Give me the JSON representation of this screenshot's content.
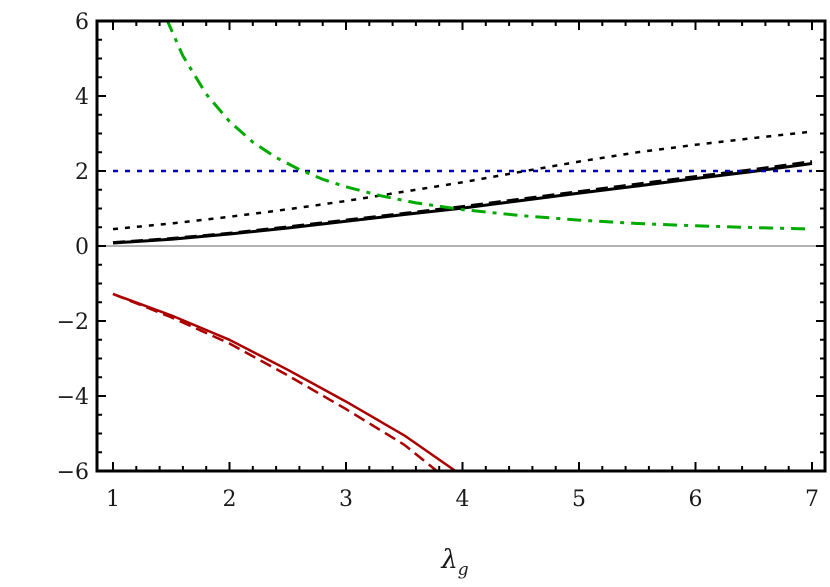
{
  "chart_data": {
    "type": "line",
    "title": "",
    "xlabel": "λ_g",
    "xlabel_main": "λ",
    "xlabel_sub": "g",
    "ylabel": "",
    "xlim": [
      1,
      7
    ],
    "ylim": [
      -6,
      6
    ],
    "grid": false,
    "legend": null,
    "x_ticks": [
      1,
      2,
      3,
      4,
      5,
      6,
      7
    ],
    "x_tick_labels": [
      "1",
      "2",
      "3",
      "4",
      "5",
      "6",
      "7"
    ],
    "y_ticks": [
      -6,
      -4,
      -2,
      0,
      2,
      4,
      6
    ],
    "y_tick_labels": [
      "−6",
      "−4",
      "−2",
      "0",
      "2",
      "4",
      "6"
    ],
    "reference_lines": [
      {
        "name": "zero-line",
        "y": 0,
        "color": "#999999",
        "style": "solid"
      }
    ],
    "series": [
      {
        "name": "black-solid",
        "color": "#000000",
        "style": "solid",
        "width": 3,
        "x": [
          1,
          1.5,
          2,
          2.5,
          3,
          3.5,
          4,
          4.5,
          5,
          5.5,
          6,
          6.5,
          7
        ],
        "values": [
          0.08,
          0.18,
          0.32,
          0.48,
          0.66,
          0.84,
          1.01,
          1.21,
          1.41,
          1.6,
          1.8,
          1.99,
          2.2
        ]
      },
      {
        "name": "black-dashed",
        "color": "#000000",
        "style": "dashed",
        "width": 3,
        "x": [
          1,
          1.5,
          2,
          2.5,
          3,
          3.5,
          4,
          4.5,
          5,
          5.5,
          6,
          6.5,
          7
        ],
        "values": [
          0.09,
          0.2,
          0.34,
          0.51,
          0.69,
          0.87,
          1.05,
          1.25,
          1.45,
          1.65,
          1.85,
          2.04,
          2.25
        ]
      },
      {
        "name": "black-dotted",
        "color": "#000000",
        "style": "dotted",
        "width": 2.5,
        "x": [
          1,
          1.5,
          2,
          2.5,
          3,
          3.5,
          4,
          4.5,
          5,
          5.5,
          6,
          6.5,
          7
        ],
        "values": [
          0.45,
          0.6,
          0.78,
          0.98,
          1.2,
          1.45,
          1.7,
          1.98,
          2.25,
          2.5,
          2.7,
          2.88,
          3.05
        ]
      },
      {
        "name": "blue-dotted",
        "color": "#0000aa",
        "style": "dotted",
        "width": 2.5,
        "x": [
          1,
          7
        ],
        "values": [
          2,
          2
        ]
      },
      {
        "name": "green-dash-dot",
        "color": "#00aa00",
        "style": "dashdot",
        "width": 3,
        "x": [
          1.46,
          1.6,
          1.8,
          2,
          2.2,
          2.4,
          2.6,
          2.8,
          3,
          3.3,
          3.6,
          4,
          4.5,
          5,
          5.5,
          6,
          6.5,
          7
        ],
        "values": [
          6.05,
          5.07,
          4.05,
          3.32,
          2.77,
          2.36,
          2.04,
          1.78,
          1.58,
          1.34,
          1.15,
          0.97,
          0.81,
          0.69,
          0.6,
          0.54,
          0.49,
          0.45
        ]
      },
      {
        "name": "red-solid",
        "color": "#aa0000",
        "style": "solid",
        "width": 2.5,
        "x": [
          1,
          1.5,
          2,
          2.5,
          3,
          3.5,
          3.94
        ],
        "values": [
          -1.28,
          -1.85,
          -2.5,
          -3.3,
          -4.15,
          -5.05,
          -6
        ]
      },
      {
        "name": "red-dashed",
        "color": "#aa0000",
        "style": "dashed",
        "width": 2.5,
        "x": [
          1,
          1.5,
          2,
          2.5,
          3,
          3.5,
          3.78
        ],
        "values": [
          -1.28,
          -1.9,
          -2.6,
          -3.45,
          -4.35,
          -5.3,
          -6
        ]
      }
    ]
  }
}
